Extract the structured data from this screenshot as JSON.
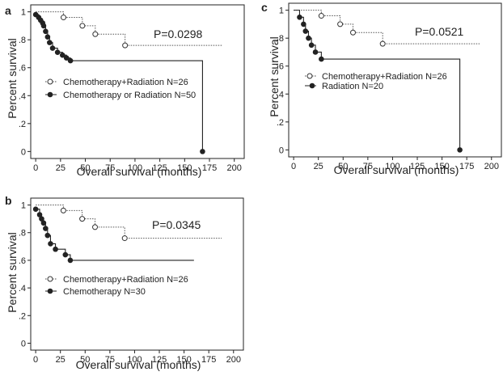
{
  "chart_data": [
    {
      "panel": "a",
      "type": "line",
      "xlabel": "Overall survival (months)",
      "ylabel": "Percent survival",
      "xlim": [
        -5,
        210
      ],
      "ylim": [
        -0.05,
        1.05
      ],
      "xticks": [
        0,
        25,
        50,
        75,
        100,
        125,
        150,
        175,
        200
      ],
      "yticks": [
        {
          "v": 0,
          "label": "0"
        },
        {
          "v": 0.2,
          "label": ".2"
        },
        {
          "v": 0.4,
          "label": ".4"
        },
        {
          "v": 0.6,
          "label": ".6"
        },
        {
          "v": 0.8,
          "label": ".8"
        },
        {
          "v": 1,
          "label": "1"
        }
      ],
      "pvalue": "P=0.0298",
      "grid": false,
      "series": [
        {
          "name": "Chemotherapy+Radiation N=26",
          "style": "dotted",
          "marker": "open-circle",
          "steps": [
            [
              0,
              1
            ],
            [
              28,
              0.96
            ],
            [
              47,
              0.9
            ],
            [
              60,
              0.84
            ],
            [
              90,
              0.76
            ],
            [
              188,
              0.76
            ]
          ],
          "markers": [
            [
              28,
              0.96
            ],
            [
              47,
              0.9
            ],
            [
              60,
              0.84
            ],
            [
              90,
              0.76
            ]
          ]
        },
        {
          "name": "Chemotherapy or Radiation N=50",
          "style": "solid",
          "marker": "filled-circle",
          "steps": [
            [
              0,
              0.98
            ],
            [
              3,
              0.96
            ],
            [
              5,
              0.94
            ],
            [
              7,
              0.92
            ],
            [
              8,
              0.9
            ],
            [
              10,
              0.86
            ],
            [
              12,
              0.82
            ],
            [
              14,
              0.78
            ],
            [
              17,
              0.74
            ],
            [
              22,
              0.71
            ],
            [
              27,
              0.69
            ],
            [
              31,
              0.67
            ],
            [
              35,
              0.65
            ],
            [
              168,
              0.65
            ],
            [
              168,
              0
            ],
            [
              169,
              0
            ]
          ],
          "markers": [
            [
              0,
              0.98
            ],
            [
              3,
              0.96
            ],
            [
              5,
              0.94
            ],
            [
              7,
              0.92
            ],
            [
              8,
              0.9
            ],
            [
              10,
              0.86
            ],
            [
              12,
              0.82
            ],
            [
              14,
              0.78
            ],
            [
              17,
              0.74
            ],
            [
              22,
              0.71
            ],
            [
              27,
              0.69
            ],
            [
              31,
              0.67
            ],
            [
              35,
              0.65
            ],
            [
              168,
              0
            ]
          ]
        }
      ]
    },
    {
      "panel": "b",
      "type": "line",
      "xlabel": "Overall survival (months)",
      "ylabel": "Percent survival",
      "xlim": [
        -5,
        210
      ],
      "ylim": [
        -0.05,
        1.05
      ],
      "xticks": [
        0,
        25,
        50,
        75,
        100,
        125,
        150,
        175,
        200
      ],
      "yticks": [
        {
          "v": 0,
          "label": "0"
        },
        {
          "v": 0.2,
          "label": ".2"
        },
        {
          "v": 0.4,
          "label": ".4"
        },
        {
          "v": 0.6,
          "label": ".6"
        },
        {
          "v": 0.8,
          "label": ".8"
        },
        {
          "v": 1,
          "label": "1"
        }
      ],
      "pvalue": "P=0.0345",
      "grid": false,
      "series": [
        {
          "name": "Chemotherapy+Radiation N=26",
          "style": "dotted",
          "marker": "open-circle",
          "steps": [
            [
              0,
              1
            ],
            [
              28,
              0.96
            ],
            [
              47,
              0.9
            ],
            [
              60,
              0.84
            ],
            [
              90,
              0.76
            ],
            [
              188,
              0.76
            ]
          ],
          "markers": [
            [
              28,
              0.96
            ],
            [
              47,
              0.9
            ],
            [
              60,
              0.84
            ],
            [
              90,
              0.76
            ]
          ]
        },
        {
          "name": "Chemotherapy N=30",
          "style": "solid",
          "marker": "filled-circle",
          "steps": [
            [
              0,
              0.97
            ],
            [
              4,
              0.93
            ],
            [
              6,
              0.9
            ],
            [
              8,
              0.87
            ],
            [
              10,
              0.83
            ],
            [
              12,
              0.78
            ],
            [
              15,
              0.72
            ],
            [
              20,
              0.68
            ],
            [
              30,
              0.64
            ],
            [
              35,
              0.6
            ],
            [
              160,
              0.6
            ]
          ],
          "markers": [
            [
              0,
              0.97
            ],
            [
              4,
              0.93
            ],
            [
              6,
              0.9
            ],
            [
              8,
              0.87
            ],
            [
              10,
              0.83
            ],
            [
              12,
              0.78
            ],
            [
              15,
              0.72
            ],
            [
              20,
              0.68
            ],
            [
              30,
              0.64
            ],
            [
              35,
              0.6
            ]
          ]
        }
      ]
    },
    {
      "panel": "c",
      "type": "line",
      "xlabel": "Overall survival (months)",
      "ylabel": "Percent survival",
      "xlim": [
        -5,
        210
      ],
      "ylim": [
        -0.05,
        1.05
      ],
      "xticks": [
        0,
        25,
        50,
        75,
        100,
        125,
        150,
        175,
        200
      ],
      "yticks": [
        {
          "v": 0,
          "label": "0"
        },
        {
          "v": 0.2,
          "label": ".2"
        },
        {
          "v": 0.4,
          "label": ".4"
        },
        {
          "v": 0.6,
          "label": ".6"
        },
        {
          "v": 0.8,
          "label": ".8"
        },
        {
          "v": 1,
          "label": "1"
        }
      ],
      "pvalue": "P=0.0521",
      "grid": false,
      "series": [
        {
          "name": "Chemotherapy+Radiation N=26",
          "style": "dotted",
          "marker": "open-circle",
          "steps": [
            [
              0,
              1
            ],
            [
              28,
              0.96
            ],
            [
              47,
              0.9
            ],
            [
              60,
              0.84
            ],
            [
              90,
              0.76
            ],
            [
              188,
              0.76
            ]
          ],
          "markers": [
            [
              28,
              0.96
            ],
            [
              47,
              0.9
            ],
            [
              60,
              0.84
            ],
            [
              90,
              0.76
            ]
          ]
        },
        {
          "name": "Radiation N=20",
          "style": "solid",
          "marker": "filled-circle",
          "steps": [
            [
              0,
              1
            ],
            [
              6,
              0.95
            ],
            [
              10,
              0.9
            ],
            [
              12,
              0.85
            ],
            [
              15,
              0.8
            ],
            [
              18,
              0.75
            ],
            [
              22,
              0.7
            ],
            [
              28,
              0.65
            ],
            [
              168,
              0.65
            ],
            [
              168,
              0
            ],
            [
              169,
              0
            ]
          ],
          "markers": [
            [
              6,
              0.95
            ],
            [
              10,
              0.9
            ],
            [
              12,
              0.85
            ],
            [
              15,
              0.8
            ],
            [
              18,
              0.75
            ],
            [
              22,
              0.7
            ],
            [
              28,
              0.65
            ],
            [
              168,
              0
            ]
          ]
        }
      ]
    }
  ]
}
